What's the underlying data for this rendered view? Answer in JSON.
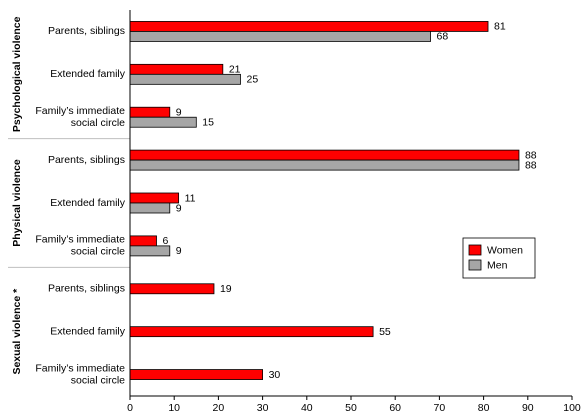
{
  "chart_data": {
    "type": "bar",
    "orientation": "horizontal",
    "title": "",
    "xlabel": "",
    "ylabel": "",
    "xlim": [
      0,
      100
    ],
    "xticks": [
      0,
      10,
      20,
      30,
      40,
      50,
      60,
      70,
      80,
      90,
      100
    ],
    "grid": false,
    "legend_position": "right-middle",
    "groups": [
      {
        "name": "Psychological violence",
        "categories": [
          {
            "label": [
              "Parents, siblings"
            ],
            "women": 81,
            "men": 68
          },
          {
            "label": [
              "Extended family"
            ],
            "women": 21,
            "men": 25
          },
          {
            "label": [
              "Family’s immediate",
              "social circle"
            ],
            "women": 9,
            "men": 15
          }
        ]
      },
      {
        "name": "Physical violence",
        "categories": [
          {
            "label": [
              "Parents, siblings"
            ],
            "women": 88,
            "men": 88
          },
          {
            "label": [
              "Extended family"
            ],
            "women": 11,
            "men": 9
          },
          {
            "label": [
              "Family’s immediate",
              "social circle"
            ],
            "women": 6,
            "men": 9
          }
        ]
      },
      {
        "name": "Sexual violence *",
        "categories": [
          {
            "label": [
              "Parents, siblings"
            ],
            "women": 19,
            "men": null
          },
          {
            "label": [
              "Extended family"
            ],
            "women": 55,
            "men": null
          },
          {
            "label": [
              "Family’s immediate",
              "social circle"
            ],
            "women": 30,
            "men": null
          }
        ]
      }
    ],
    "series": [
      {
        "key": "women",
        "name": "Women",
        "color": "#ff0000"
      },
      {
        "key": "men",
        "name": "Men",
        "color": "#a6a6a6"
      }
    ]
  }
}
